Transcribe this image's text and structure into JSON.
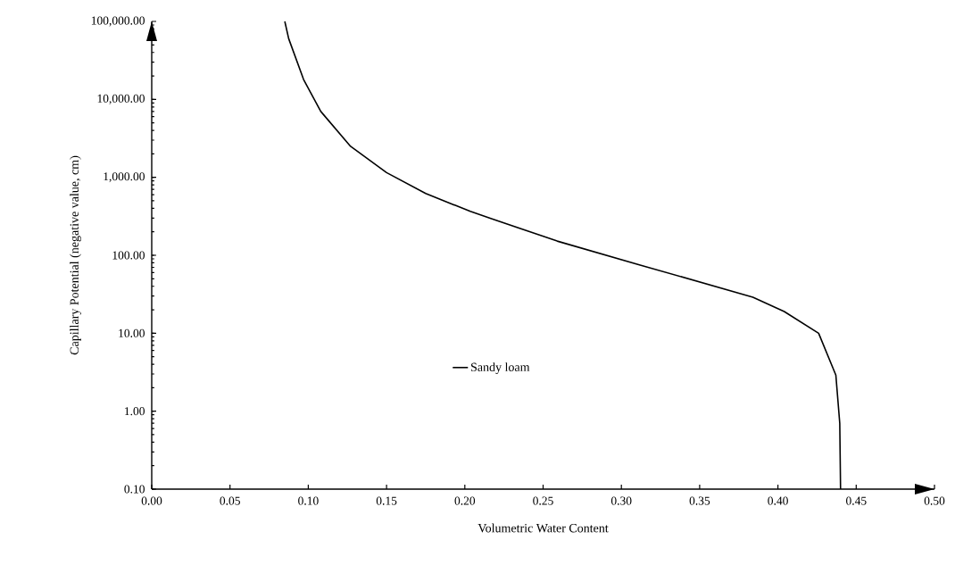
{
  "chart_data": {
    "type": "line",
    "xlabel": "Volumetric Water Content",
    "ylabel": "Capillary Potential (negative value, cm)",
    "x": [
      0.085,
      0.0875,
      0.097,
      0.108,
      0.127,
      0.15,
      0.175,
      0.2035,
      0.217,
      0.251,
      0.259,
      0.312,
      0.384,
      0.404,
      0.426,
      0.437,
      0.4395,
      0.44
    ],
    "series": [
      {
        "name": "Sandy loam",
        "color": "#000000",
        "values": [
          100000,
          60000,
          18000,
          7000,
          2500,
          1150,
          620,
          366,
          294,
          173,
          152,
          75,
          29,
          19,
          10,
          2.9,
          0.7,
          0.1
        ]
      }
    ],
    "xlim": [
      0,
      0.5
    ],
    "ylim": [
      0.1,
      100000
    ],
    "xticks": [
      {
        "value": 0,
        "label": "0.00"
      },
      {
        "value": 0.05,
        "label": "0.05"
      },
      {
        "value": 0.1,
        "label": "0.10"
      },
      {
        "value": 0.15,
        "label": "0.15"
      },
      {
        "value": 0.2,
        "label": "0.20"
      },
      {
        "value": 0.25,
        "label": "0.25"
      },
      {
        "value": 0.3,
        "label": "0.30"
      },
      {
        "value": 0.35,
        "label": "0.35"
      },
      {
        "value": 0.4,
        "label": "0.40"
      },
      {
        "value": 0.45,
        "label": "0.45"
      },
      {
        "value": 0.5,
        "label": "0.50"
      }
    ],
    "yticks": [
      {
        "value": 0.1,
        "label": "0.10"
      },
      {
        "value": 1,
        "label": "1.00"
      },
      {
        "value": 10,
        "label": "10.00"
      },
      {
        "value": 100,
        "label": "100.00"
      },
      {
        "value": 1000,
        "label": "1,000.00"
      },
      {
        "value": 10000,
        "label": "10,000.00"
      },
      {
        "value": 100000,
        "label": "100,000.00"
      }
    ],
    "log": "y",
    "legend": "bottom",
    "marker": "none",
    "line_style": "solid"
  }
}
